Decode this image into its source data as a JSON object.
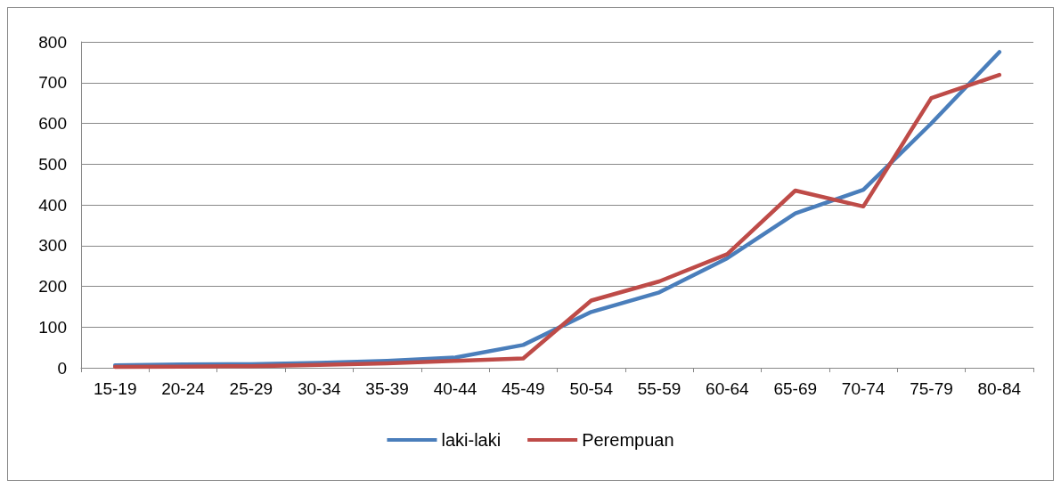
{
  "chart_data": {
    "type": "line",
    "categories": [
      "15-19",
      "20-24",
      "25-29",
      "30-34",
      "35-39",
      "40-44",
      "45-49",
      "50-54",
      "55-59",
      "60-64",
      "65-69",
      "70-74",
      "75-79",
      "80-84"
    ],
    "series": [
      {
        "name": "laki-laki",
        "color": "#4a7ebb",
        "values": [
          6,
          8,
          9,
          12,
          17,
          25,
          56,
          137,
          185,
          269,
          379,
          437,
          600,
          775
        ]
      },
      {
        "name": "Perempuan",
        "color": "#be4b48",
        "values": [
          2,
          3,
          4,
          7,
          11,
          17,
          23,
          165,
          212,
          279,
          435,
          396,
          662,
          719
        ]
      }
    ],
    "ylim": [
      0,
      800
    ],
    "yticks": [
      0,
      100,
      200,
      300,
      400,
      500,
      600,
      700,
      800
    ],
    "grid": "y",
    "legend": "bottom",
    "marker": "none",
    "line_style": "solid"
  }
}
